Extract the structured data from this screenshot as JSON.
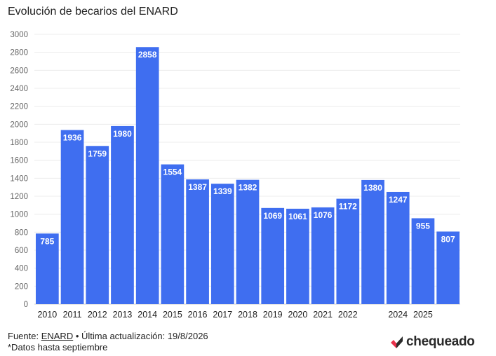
{
  "chart_data": {
    "type": "bar",
    "title": "Evolución de becarios del ENARD",
    "categories": [
      "2010",
      "2011",
      "2012",
      "2013",
      "2014",
      "2015",
      "2016",
      "2017",
      "2018",
      "2019",
      "2020",
      "2021",
      "2022",
      "",
      "2024",
      "2025",
      ""
    ],
    "values": [
      785,
      1936,
      1759,
      1980,
      2858,
      1554,
      1387,
      1339,
      1382,
      1069,
      1061,
      1076,
      1172,
      1380,
      1247,
      955,
      807
    ],
    "data_labels": [
      "785",
      "1936",
      "1759",
      "1980",
      "2858",
      "1554",
      "1387",
      "1339",
      "1382",
      "1069",
      "1061",
      "1076",
      "1172",
      "1380",
      "1247",
      "955",
      "807"
    ],
    "ylim": [
      0,
      3000
    ],
    "yticks": [
      0,
      200,
      400,
      600,
      800,
      1000,
      1200,
      1400,
      1600,
      1800,
      2000,
      2200,
      2400,
      2600,
      2800,
      3000
    ],
    "grid": true,
    "bar_color": "#3f6ef0",
    "label_color": "#ffffff"
  },
  "footer": {
    "source_prefix": "Fuente: ",
    "source_link": "ENARD",
    "source_suffix": " • Última actualización: 19/8/2026",
    "note": "*Datos hasta septiembre"
  },
  "logo": {
    "text": "chequeado",
    "icon": "chequeado-check-icon",
    "color_dark": "#2a2a2a",
    "color_red": "#e8304a"
  }
}
